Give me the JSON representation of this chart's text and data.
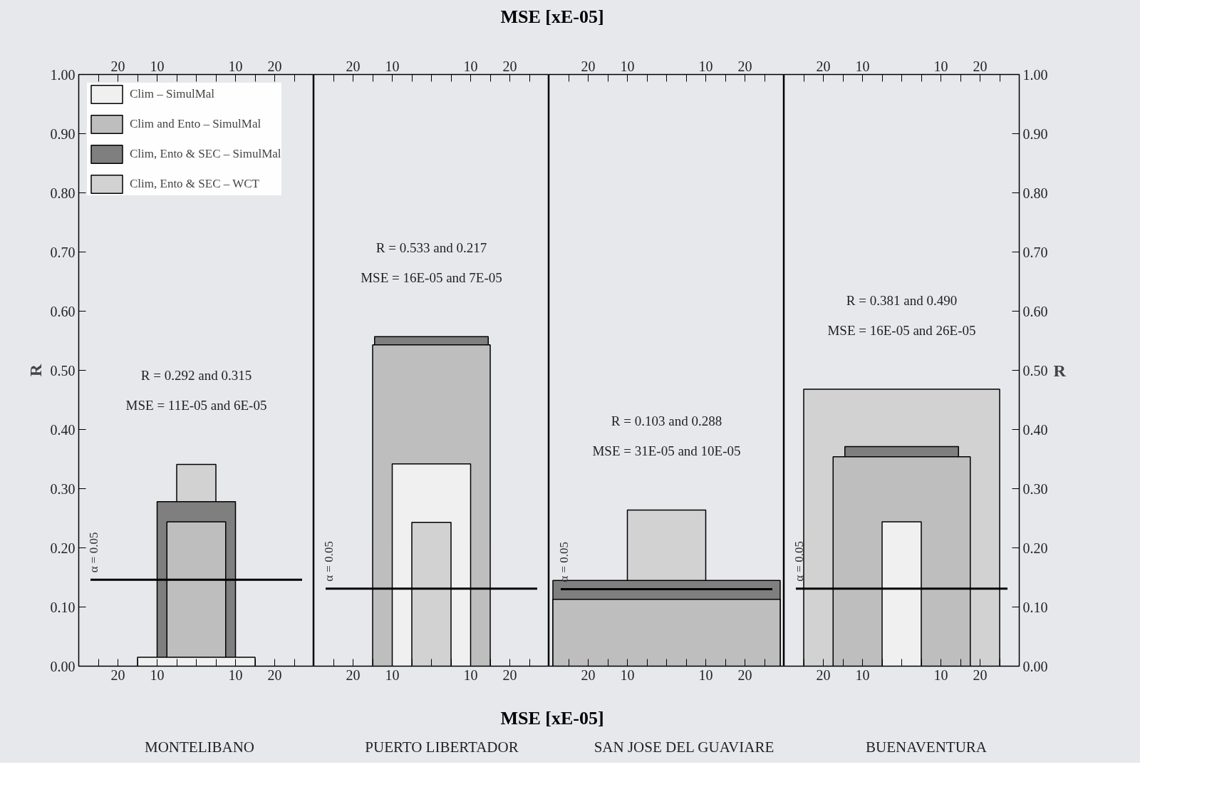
{
  "chart_data": [
    {
      "type": "area",
      "title": "MONTELIBANO",
      "ylabel": "R",
      "legend": "top left",
      "xlim": [
        -30,
        30
      ],
      "x2lim": [
        -30,
        30
      ],
      "xticks": [
        {
          "value": -25,
          "label": null
        },
        {
          "value": -20,
          "label": "20"
        },
        {
          "value": -15,
          "label": null
        },
        {
          "value": -10,
          "label": "10"
        },
        {
          "value": -5,
          "label": null
        },
        {
          "value": 0,
          "label": null
        },
        {
          "value": 5,
          "label": null
        },
        {
          "value": 10,
          "label": "10"
        },
        {
          "value": 15,
          "label": null
        },
        {
          "value": 20,
          "label": "20"
        },
        {
          "value": 25,
          "label": null
        }
      ],
      "x2ticks": [
        {
          "value": -25,
          "label": null
        },
        {
          "value": -20,
          "label": "20"
        },
        {
          "value": -15,
          "label": null
        },
        {
          "value": -10,
          "label": "10"
        },
        {
          "value": -5,
          "label": null
        },
        {
          "value": 0,
          "label": null
        },
        {
          "value": 5,
          "label": null
        },
        {
          "value": 10,
          "label": "10"
        },
        {
          "value": 15,
          "label": null
        },
        {
          "value": 20,
          "label": "20"
        },
        {
          "value": 25,
          "label": null
        }
      ],
      "ylim": [
        0,
        1
      ],
      "yticks": [
        {
          "value": 0,
          "label": "0.00"
        },
        {
          "value": 0.1,
          "label": "0.10"
        },
        {
          "value": 0.2,
          "label": "0.20"
        },
        {
          "value": 0.3,
          "label": "0.30"
        },
        {
          "value": 0.4,
          "label": "0.40"
        },
        {
          "value": 0.5,
          "label": "0.50"
        },
        {
          "value": 0.6,
          "label": "0.60"
        },
        {
          "value": 0.7,
          "label": "0.70"
        },
        {
          "value": 0.8,
          "label": "0.80"
        },
        {
          "value": 0.9,
          "label": "0.90"
        },
        {
          "value": 1,
          "label": "1.00"
        }
      ],
      "series": [
        {
          "name": "Clim, Ento & SEC – WCT",
          "color": "#d2d2d2",
          "x": [
            -5,
            -5,
            5,
            5
          ],
          "values": [
            0,
            0.341,
            0.341,
            0
          ]
        },
        {
          "name": "Clim, Ento & SEC – SimulMal",
          "color": "#7f7f7f",
          "x": [
            -10,
            -10,
            10,
            10
          ],
          "values": [
            0,
            0.278,
            0.278,
            0
          ]
        },
        {
          "name": "Clim and Ento – SimulMal",
          "color": "#bebebe",
          "x": [
            -7.5,
            -7.5,
            7.5,
            7.5
          ],
          "values": [
            0,
            0.244,
            0.244,
            0
          ]
        },
        {
          "name": "Clim – SimulMal",
          "color": "#f0f0f0",
          "x": [
            -15,
            -15,
            15,
            15
          ],
          "values": [
            0,
            0.015,
            0.015,
            0
          ]
        }
      ],
      "ref_lines": [
        {
          "axis": "y",
          "value": 0.146
        }
      ],
      "annotations": [
        "R = 0.292 and 0.315",
        "MSE = 11E-05 and 6E-05",
        "α = 0.05"
      ]
    },
    {
      "type": "area",
      "title": "PUERTO LIBERTADOR",
      "xlabel": "MSE [xE-05]",
      "x2label": "MSE [xE-05]",
      "tick_labels": "x",
      "xlim": [
        -30,
        30
      ],
      "x2lim": [
        -30,
        30
      ],
      "xticks": [
        {
          "value": -25,
          "label": null
        },
        {
          "value": -20,
          "label": "20"
        },
        {
          "value": -15,
          "label": null
        },
        {
          "value": -10,
          "label": "10"
        },
        {
          "value": -5,
          "label": null
        },
        {
          "value": 0,
          "label": null
        },
        {
          "value": 5,
          "label": null
        },
        {
          "value": 10,
          "label": "10"
        },
        {
          "value": 15,
          "label": null
        },
        {
          "value": 20,
          "label": "20"
        },
        {
          "value": 25,
          "label": null
        }
      ],
      "x2ticks": [
        {
          "value": -25,
          "label": null
        },
        {
          "value": -20,
          "label": "20"
        },
        {
          "value": -15,
          "label": null
        },
        {
          "value": -10,
          "label": "10"
        },
        {
          "value": -5,
          "label": null
        },
        {
          "value": 0,
          "label": null
        },
        {
          "value": 5,
          "label": null
        },
        {
          "value": 10,
          "label": "10"
        },
        {
          "value": 15,
          "label": null
        },
        {
          "value": 20,
          "label": "20"
        },
        {
          "value": 25,
          "label": null
        }
      ],
      "ylim": [
        0,
        1
      ],
      "series": [
        {
          "color": "#7f7f7f",
          "x": [
            -14.5,
            -14.5,
            14.5,
            14.5
          ],
          "values": [
            0,
            0.557,
            0.557,
            0
          ]
        },
        {
          "color": "#bebebe",
          "x": [
            -15,
            -15,
            15,
            15
          ],
          "values": [
            0,
            0.543,
            0.543,
            0
          ]
        },
        {
          "color": "#f0f0f0",
          "x": [
            -10,
            -10,
            10,
            10
          ],
          "values": [
            0,
            0.342,
            0.342,
            0
          ]
        },
        {
          "color": "#d2d2d2",
          "x": [
            -5,
            -5,
            5,
            5
          ],
          "values": [
            0,
            0.243,
            0.243,
            0
          ]
        }
      ],
      "ref_lines": [
        {
          "axis": "y",
          "value": 0.131
        }
      ],
      "annotations": [
        "R = 0.533 and 0.217",
        "MSE = 16E-05 and 7E-05",
        "α = 0.05"
      ]
    },
    {
      "type": "area",
      "title": "SAN JOSE DEL GUAVIARE",
      "tick_labels": "x",
      "xlim": [
        -30,
        30
      ],
      "x2lim": [
        -30,
        30
      ],
      "xticks": [
        {
          "value": -25,
          "label": null
        },
        {
          "value": -20,
          "label": "20"
        },
        {
          "value": -15,
          "label": null
        },
        {
          "value": -10,
          "label": "10"
        },
        {
          "value": -5,
          "label": null
        },
        {
          "value": 0,
          "label": null
        },
        {
          "value": 5,
          "label": null
        },
        {
          "value": 10,
          "label": "10"
        },
        {
          "value": 15,
          "label": null
        },
        {
          "value": 20,
          "label": "20"
        },
        {
          "value": 25,
          "label": null
        }
      ],
      "x2ticks": [
        {
          "value": -25,
          "label": null
        },
        {
          "value": -20,
          "label": "20"
        },
        {
          "value": -15,
          "label": null
        },
        {
          "value": -10,
          "label": "10"
        },
        {
          "value": -5,
          "label": null
        },
        {
          "value": 0,
          "label": null
        },
        {
          "value": 5,
          "label": null
        },
        {
          "value": 10,
          "label": "10"
        },
        {
          "value": 15,
          "label": null
        },
        {
          "value": 20,
          "label": "20"
        },
        {
          "value": 25,
          "label": null
        }
      ],
      "ylim": [
        0,
        1
      ],
      "series": [
        {
          "color": "#d2d2d2",
          "x": [
            -10,
            -10,
            10,
            10
          ],
          "values": [
            0,
            0.264,
            0.264,
            0
          ]
        },
        {
          "color": "#7f7f7f",
          "x": [
            -29,
            -29,
            29,
            29
          ],
          "values": [
            0,
            0.145,
            0.145,
            0
          ]
        },
        {
          "color": "#bebebe",
          "x": [
            -29,
            -29,
            29,
            29
          ],
          "values": [
            0,
            0.113,
            0.113,
            0
          ]
        }
      ],
      "ref_lines": [
        {
          "axis": "y",
          "value": 0.13
        }
      ],
      "annotations": [
        "R = 0.103 and 0.288",
        "MSE = 31E-05 and 10E-05",
        "α = 0.05"
      ]
    },
    {
      "type": "area",
      "title": "BUENAVENTURA",
      "ylabel": "R",
      "xlim": [
        -30,
        30
      ],
      "x2lim": [
        -30,
        30
      ],
      "xticks": [
        {
          "value": -25,
          "label": null
        },
        {
          "value": -20,
          "label": "20"
        },
        {
          "value": -15,
          "label": null
        },
        {
          "value": -10,
          "label": "10"
        },
        {
          "value": -5,
          "label": null
        },
        {
          "value": 0,
          "label": null
        },
        {
          "value": 5,
          "label": null
        },
        {
          "value": 10,
          "label": "10"
        },
        {
          "value": 15,
          "label": null
        },
        {
          "value": 20,
          "label": "20"
        },
        {
          "value": 25,
          "label": null
        }
      ],
      "x2ticks": [
        {
          "value": -25,
          "label": null
        },
        {
          "value": -20,
          "label": "20"
        },
        {
          "value": -15,
          "label": null
        },
        {
          "value": -10,
          "label": "10"
        },
        {
          "value": -5,
          "label": null
        },
        {
          "value": 0,
          "label": null
        },
        {
          "value": 5,
          "label": null
        },
        {
          "value": 10,
          "label": "10"
        },
        {
          "value": 15,
          "label": null
        },
        {
          "value": 20,
          "label": "20"
        },
        {
          "value": 25,
          "label": null
        }
      ],
      "ylim": [
        0,
        1
      ],
      "yticks": [
        {
          "value": 0,
          "label": "0.00"
        },
        {
          "value": 0.1,
          "label": "0.10"
        },
        {
          "value": 0.2,
          "label": "0.20"
        },
        {
          "value": 0.3,
          "label": "0.30"
        },
        {
          "value": 0.4,
          "label": "0.40"
        },
        {
          "value": 0.5,
          "label": "0.50"
        },
        {
          "value": 0.6,
          "label": "0.60"
        },
        {
          "value": 0.7,
          "label": "0.70"
        },
        {
          "value": 0.8,
          "label": "0.80"
        },
        {
          "value": 0.9,
          "label": "0.90"
        },
        {
          "value": 1,
          "label": "1.00"
        }
      ],
      "series": [
        {
          "color": "#d2d2d2",
          "x": [
            -25,
            -25,
            25,
            25
          ],
          "values": [
            0,
            0.468,
            0.468,
            0
          ]
        },
        {
          "color": "#7f7f7f",
          "x": [
            -14.5,
            -14.5,
            14.5,
            14.5
          ],
          "values": [
            0,
            0.371,
            0.371,
            0
          ]
        },
        {
          "color": "#bebebe",
          "x": [
            -17.5,
            -17.5,
            17.5,
            17.5
          ],
          "values": [
            0,
            0.354,
            0.354,
            0
          ]
        },
        {
          "color": "#f0f0f0",
          "x": [
            -5,
            -5,
            5,
            5
          ],
          "values": [
            0,
            0.244,
            0.244,
            0
          ]
        }
      ],
      "ref_lines": [
        {
          "axis": "y",
          "value": 0.131
        }
      ],
      "annotations": [
        "R = 0.381 and 0.490",
        "MSE = 16E-05 and 26E-05",
        "α = 0.05"
      ]
    }
  ]
}
